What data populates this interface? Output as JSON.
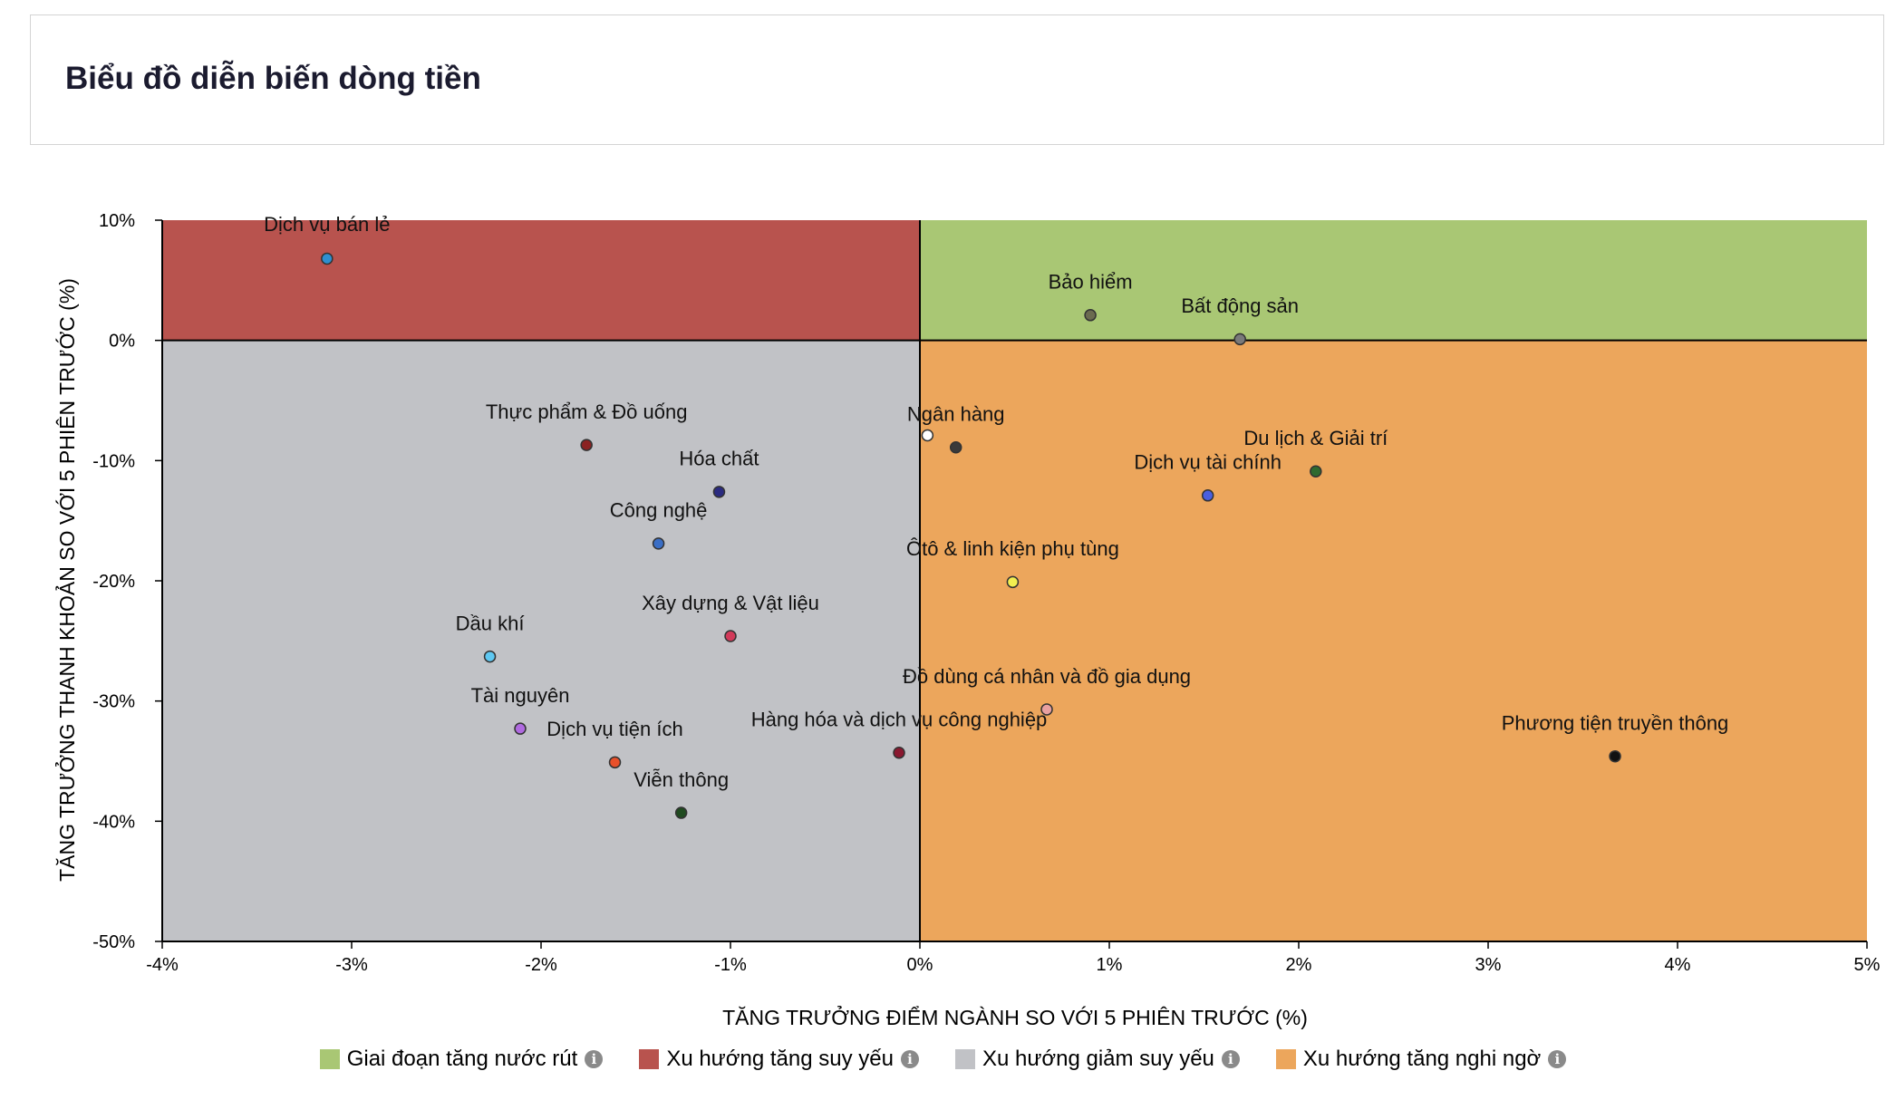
{
  "header": {
    "title": "Biểu đồ diễn biến dòng tiền"
  },
  "chart_data": {
    "type": "scatter",
    "xlabel": "TĂNG TRƯỞNG ĐIỂM NGÀNH SO VỚI 5 PHIÊN TRƯỚC (%)",
    "ylabel": "TĂNG TRƯỞNG THANH KHOẢN SO VỚI 5 PHIÊN TRƯỚC (%)",
    "xlim": [
      -4,
      5
    ],
    "ylim": [
      -50,
      10
    ],
    "xticks": [
      -4,
      -3,
      -2,
      -1,
      0,
      1,
      2,
      3,
      4,
      5
    ],
    "xtick_labels": [
      "-4%",
      "-3%",
      "-2%",
      "-1%",
      "0%",
      "1%",
      "2%",
      "3%",
      "4%",
      "5%"
    ],
    "yticks": [
      10,
      0,
      -10,
      -20,
      -30,
      -40,
      -50
    ],
    "ytick_labels": [
      "10%",
      "0%",
      "-10%",
      "-20%",
      "-30%",
      "-40%",
      "-50%"
    ],
    "grid": false,
    "legend_position": "bottom",
    "quadrants": [
      {
        "name": "Giai đoạn tăng nước rút",
        "color": "#a9c774",
        "region": "top-right"
      },
      {
        "name": "Xu hướng tăng suy yếu",
        "color": "#b8534e",
        "region": "top-left"
      },
      {
        "name": "Xu hướng giảm suy yếu",
        "color": "#c1c2c6",
        "region": "bottom-left"
      },
      {
        "name": "Xu hướng tăng nghi ngờ",
        "color": "#eca65c",
        "region": "bottom-right"
      }
    ],
    "points": [
      {
        "name": "Dịch vụ bán lẻ",
        "x": -3.13,
        "y": 6.8,
        "color": "#2e8fd0"
      },
      {
        "name": "Bảo hiểm",
        "x": 0.9,
        "y": 2.1,
        "color": "#6b6b50"
      },
      {
        "name": "Bất động sản",
        "x": 1.69,
        "y": 0.1,
        "color": "#7a7a7a"
      },
      {
        "name": "Thực phẩm & Đồ uống",
        "x": -1.76,
        "y": -8.7,
        "color": "#8b2222"
      },
      {
        "name": "Ngân hàng",
        "x": 0.04,
        "y": -7.9,
        "color": "#ffffff"
      },
      {
        "name": "Ngân hàng",
        "x": 0.19,
        "y": -8.9,
        "color": "#3a3a3a"
      },
      {
        "name": "Hóa chất",
        "x": -1.06,
        "y": -12.6,
        "color": "#2a2a80"
      },
      {
        "name": "Du lịch & Giải trí",
        "x": 2.09,
        "y": -10.9,
        "color": "#2f6a2f"
      },
      {
        "name": "Dịch vụ tài chính",
        "x": 1.52,
        "y": -12.9,
        "color": "#4a5fe0"
      },
      {
        "name": "Công nghệ",
        "x": -1.38,
        "y": -16.9,
        "color": "#3a6ec6"
      },
      {
        "name": "Ôtô & linh kiện phụ tùng",
        "x": 0.49,
        "y": -20.1,
        "color": "#f2ef50"
      },
      {
        "name": "Xây dựng & Vật liệu",
        "x": -1.0,
        "y": -24.6,
        "color": "#d23a5a"
      },
      {
        "name": "Dầu khí",
        "x": -2.27,
        "y": -26.3,
        "color": "#5fc8f2"
      },
      {
        "name": "Đồ dùng cá nhân và đồ gia dụng",
        "x": 0.67,
        "y": -30.7,
        "color": "#e8a0a0"
      },
      {
        "name": "Tài nguyên",
        "x": -2.11,
        "y": -32.3,
        "color": "#b06ae0"
      },
      {
        "name": "Hàng hóa và dịch vụ công nghiệp",
        "x": -0.11,
        "y": -34.3,
        "color": "#8a1830"
      },
      {
        "name": "Phương tiện truyền thông",
        "x": 3.67,
        "y": -34.6,
        "color": "#111111"
      },
      {
        "name": "Dịch vụ tiện ích",
        "x": -1.61,
        "y": -35.1,
        "color": "#e8502a"
      },
      {
        "name": "Viễn thông",
        "x": -1.26,
        "y": -39.3,
        "color": "#1f4a1f"
      }
    ],
    "labels": [
      {
        "text": "Dịch vụ bán lẻ",
        "x": -3.13,
        "y": 9.1
      },
      {
        "text": "Bảo hiểm",
        "x": 0.9,
        "y": 4.3
      },
      {
        "text": "Bất động sản",
        "x": 1.69,
        "y": 2.3
      },
      {
        "text": "Thực phẩm & Đồ uống",
        "x": -1.76,
        "y": -6.5
      },
      {
        "text": "Ngân hàng",
        "x": 0.19,
        "y": -6.7
      },
      {
        "text": "Hóa chất",
        "x": -1.06,
        "y": -10.4
      },
      {
        "text": "Du lịch & Giải trí",
        "x": 2.09,
        "y": -8.7
      },
      {
        "text": "Dịch vụ tài chính",
        "x": 1.52,
        "y": -10.7
      },
      {
        "text": "Công nghệ",
        "x": -1.38,
        "y": -14.7
      },
      {
        "text": "Ôtô & linh kiện phụ tùng",
        "x": 0.49,
        "y": -17.9
      },
      {
        "text": "Xây dựng & Vật liệu",
        "x": -1.0,
        "y": -22.4
      },
      {
        "text": "Dầu khí",
        "x": -2.27,
        "y": -24.1
      },
      {
        "text": "Đồ dùng cá nhân và đồ gia dụng",
        "x": 0.67,
        "y": -28.5
      },
      {
        "text": "Tài nguyên",
        "x": -2.11,
        "y": -30.1
      },
      {
        "text": "Hàng hóa và dịch vụ công nghiệp",
        "x": -0.11,
        "y": -32.1
      },
      {
        "text": "Phương tiện truyền thông",
        "x": 3.67,
        "y": -32.4
      },
      {
        "text": "Dịch vụ tiện ích",
        "x": -1.61,
        "y": -32.9
      },
      {
        "text": "Viễn thông",
        "x": -1.26,
        "y": -37.1
      }
    ]
  },
  "legend": {
    "items": [
      {
        "label": "Giai đoạn tăng nước rút",
        "color": "#a9c774",
        "info_icon": "info-icon"
      },
      {
        "label": "Xu hướng tăng suy yếu",
        "color": "#b8534e",
        "info_icon": "info-icon"
      },
      {
        "label": "Xu hướng giảm suy yếu",
        "color": "#c1c2c6",
        "info_icon": "info-icon"
      },
      {
        "label": "Xu hướng tăng nghi ngờ",
        "color": "#eca65c",
        "info_icon": "info-icon"
      }
    ]
  }
}
